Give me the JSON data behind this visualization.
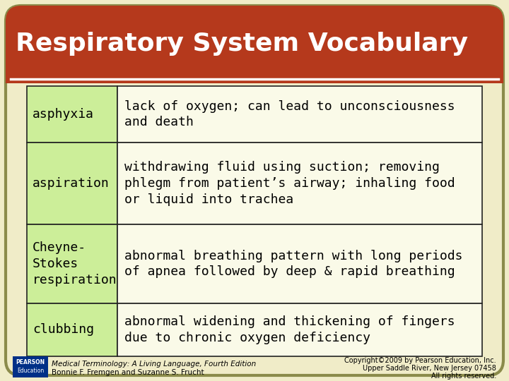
{
  "title": "Respiratory System Vocabulary",
  "title_color": "#FFFFFF",
  "title_bg_color": "#B5391C",
  "bg_color": "#F0ECC8",
  "border_color": "#8B8B4B",
  "table_border_color": "#222222",
  "term_col_bg": "#CCEE99",
  "def_col_bg": "#FAFAE8",
  "rows": [
    {
      "term": "asphyxia",
      "definition": "lack of oxygen; can lead to unconsciousness\nand death"
    },
    {
      "term": "aspiration",
      "definition": "withdrawing fluid using suction; removing\nphlegm from patient’s airway; inhaling food\nor liquid into trachea"
    },
    {
      "term": "Cheyne-\nStokes\nrespiration",
      "definition": "abnormal breathing pattern with long periods\nof apnea followed by deep & rapid breathing"
    },
    {
      "term": "clubbing",
      "definition": "abnormal widening and thickening of fingers\ndue to chronic oxygen deficiency"
    }
  ],
  "footer_left_italic": "Medical Terminology: A Living Language, Fourth Edition",
  "footer_left_normal": "Bonnie F. Fremgen and Suzanne S. Frucht",
  "footer_right_1": "Copyright©2009 by Pearson Education, Inc.",
  "footer_right_2": "Upper Saddle River, New Jersey 07458",
  "footer_right_3": "All rights reserved.",
  "pearson_box_color": "#003087",
  "pearson_line1": "PEARSON",
  "pearson_line2": "Education"
}
